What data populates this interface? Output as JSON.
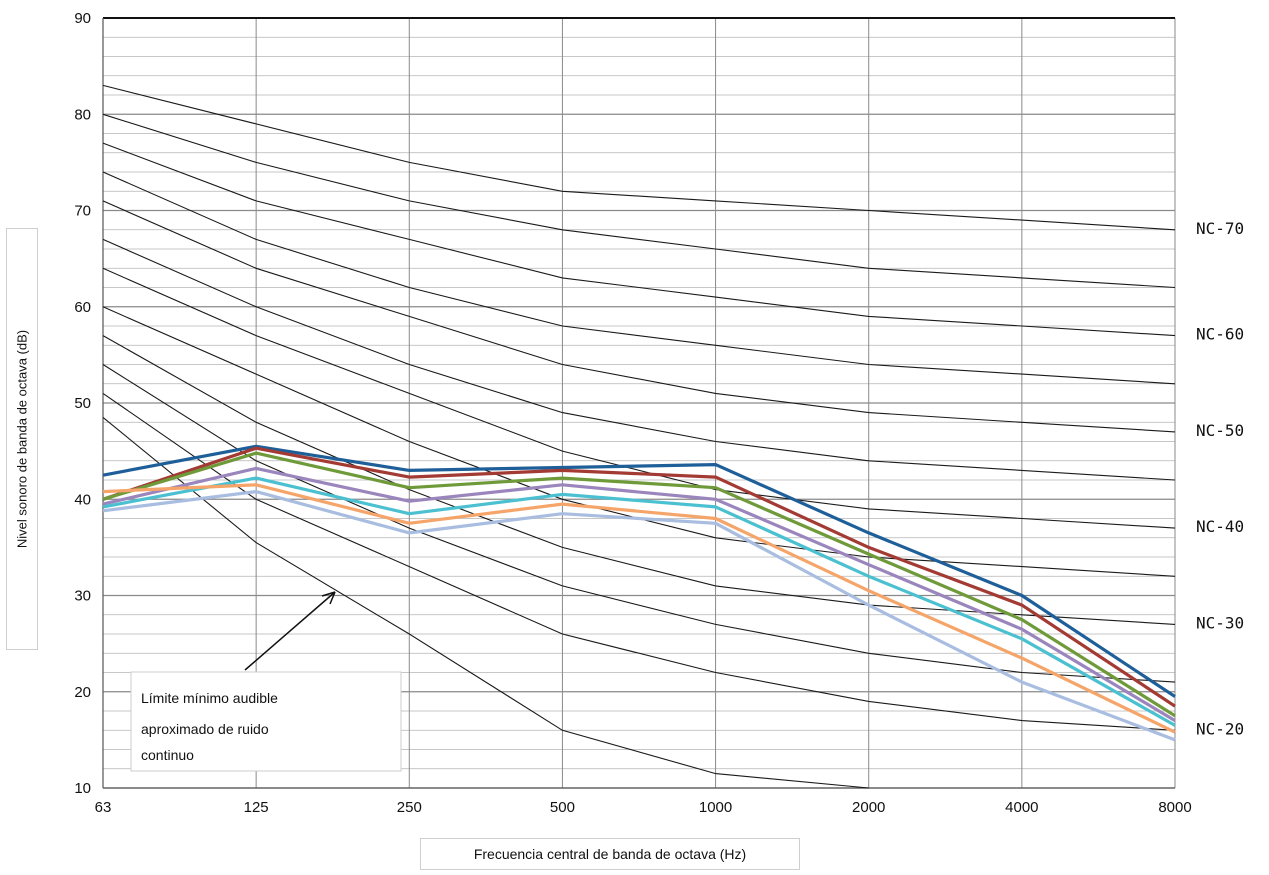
{
  "chart_data": {
    "type": "line",
    "xlabel": "Frecuencia central de banda de octava (Hz)",
    "ylabel": "Nivel sonoro de banda de octava (dB)",
    "x_scale": "log2 (octave bands)",
    "categories": [
      "63",
      "125",
      "250",
      "500",
      "1000",
      "2000",
      "4000",
      "8000"
    ],
    "ylim": [
      10,
      90
    ],
    "y_ticks": [
      10,
      20,
      30,
      40,
      50,
      60,
      70,
      80,
      90
    ],
    "grid": true,
    "nc_curves": [
      {
        "values": [
          83,
          79,
          75,
          72,
          71,
          70,
          69,
          68
        ],
        "label": "NC-70"
      },
      {
        "values": [
          80,
          75,
          71,
          68,
          66,
          64,
          63,
          62
        ],
        "label": ""
      },
      {
        "values": [
          77,
          71,
          67,
          63,
          61,
          59,
          58,
          57
        ],
        "label": "NC-60"
      },
      {
        "values": [
          74,
          67,
          62,
          58,
          56,
          54,
          53,
          52
        ],
        "label": ""
      },
      {
        "values": [
          71,
          64,
          59,
          54,
          51,
          49,
          48,
          47
        ],
        "label": "NC-50"
      },
      {
        "values": [
          67,
          60,
          54,
          49,
          46,
          44,
          43,
          42
        ],
        "label": ""
      },
      {
        "values": [
          64,
          57,
          51,
          45,
          41,
          39,
          38,
          37
        ],
        "label": "NC-40"
      },
      {
        "values": [
          60,
          53,
          46,
          40,
          36,
          34,
          33,
          32
        ],
        "label": ""
      },
      {
        "values": [
          57,
          48,
          41,
          35,
          31,
          29,
          28,
          27
        ],
        "label": "NC-30"
      },
      {
        "values": [
          54,
          44,
          37,
          31,
          27,
          24,
          22,
          21
        ],
        "label": ""
      },
      {
        "values": [
          51,
          40,
          33,
          26,
          22,
          19,
          17,
          16
        ],
        "label": "NC-20"
      },
      {
        "values": [
          48.5,
          35.5,
          26,
          16,
          11.5,
          10,
          null,
          null
        ],
        "label": ""
      }
    ],
    "series": [
      {
        "color": "#1f5f99",
        "values": [
          42.5,
          45.5,
          43,
          43.3,
          43.6,
          36.5,
          30,
          19.5
        ]
      },
      {
        "color": "#a33a33",
        "values": [
          40,
          45.3,
          42.3,
          43,
          42.3,
          35,
          29,
          18.5
        ]
      },
      {
        "color": "#6f9a3a",
        "values": [
          40,
          44.8,
          41.2,
          42.2,
          41.2,
          34.3,
          27.5,
          17.5
        ]
      },
      {
        "color": "#9a85bd",
        "values": [
          39.5,
          43.2,
          39.8,
          41.5,
          40,
          33.2,
          26.5,
          17
        ]
      },
      {
        "color": "#4bc0d0",
        "values": [
          39.2,
          42.2,
          38.5,
          40.5,
          39.2,
          32,
          25.5,
          16.5
        ]
      },
      {
        "color": "#f5a56a",
        "values": [
          40.8,
          41.5,
          37.5,
          39.5,
          38,
          30.5,
          23.5,
          15.8
        ]
      },
      {
        "color": "#a8bde0",
        "values": [
          38.8,
          40.8,
          36.5,
          38.5,
          37.5,
          29,
          21,
          15
        ]
      }
    ],
    "annotation": {
      "lines": [
        "Límite mínimo audible",
        "aproximado de ruido",
        "continuo"
      ]
    }
  }
}
